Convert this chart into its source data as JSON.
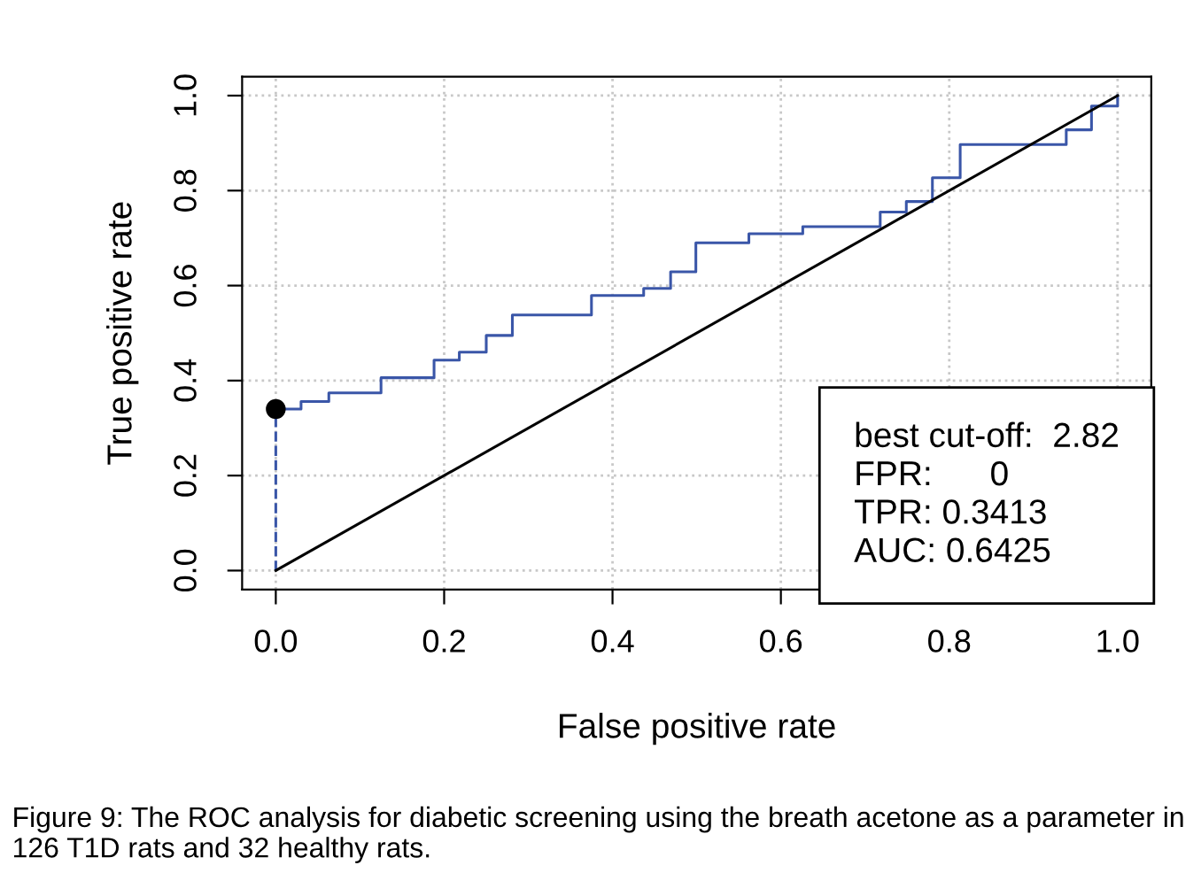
{
  "chart_data": {
    "type": "step",
    "xlabel": "False positive rate",
    "ylabel": "True positive rate",
    "xlim": [
      -0.04,
      1.04
    ],
    "ylim": [
      -0.04,
      1.04
    ],
    "xticks": [
      {
        "value": 0,
        "label": "0.0"
      },
      {
        "value": 0.2,
        "label": "0.2"
      },
      {
        "value": 0.4,
        "label": "0.4"
      },
      {
        "value": 0.6,
        "label": "0.6"
      },
      {
        "value": 0.8,
        "label": "0.8"
      },
      {
        "value": 1,
        "label": "1.0"
      }
    ],
    "yticks": [
      {
        "value": 0,
        "label": "0.0"
      },
      {
        "value": 0.2,
        "label": "0.2"
      },
      {
        "value": 0.4,
        "label": "0.4"
      },
      {
        "value": 0.6,
        "label": "0.6"
      },
      {
        "value": 0.8,
        "label": "0.8"
      },
      {
        "value": 1,
        "label": "1.0"
      }
    ],
    "grid": true,
    "legend": false,
    "series": [
      {
        "type": "step",
        "color": "#3a56a8",
        "x": [
          0,
          0.03,
          0.063,
          0.125,
          0.188,
          0.218,
          0.25,
          0.281,
          0.375,
          0.437,
          0.469,
          0.499,
          0.562,
          0.626,
          0.718,
          0.749,
          0.78,
          0.813,
          0.939,
          0.969,
          1.0
        ],
        "values": [
          0.34,
          0.356,
          0.374,
          0.406,
          0.443,
          0.46,
          0.495,
          0.538,
          0.579,
          0.594,
          0.629,
          0.69,
          0.709,
          0.724,
          0.755,
          0.777,
          0.827,
          0.897,
          0.928,
          0.978,
          1.0
        ]
      },
      {
        "type": "line",
        "color": "#3a56a8",
        "line_style": "dashed",
        "marker": "none",
        "x": [
          0,
          0
        ],
        "values": [
          0,
          0.34
        ]
      },
      {
        "type": "line",
        "color": "#000000",
        "line_style": "solid",
        "marker": "none",
        "x": [
          0,
          1
        ],
        "values": [
          0,
          1
        ]
      },
      {
        "type": "scatter",
        "color": "#000000",
        "marker": "circle",
        "x": [
          0
        ],
        "values": [
          0.34
        ]
      }
    ],
    "annotations": [
      "best cut-off:  2.82",
      "FPR:      0",
      "TPR: 0.3413",
      "AUC: 0.6425",
      "Figure 9: The ROC analysis for diabetic screening using the breath acetone as a parameter in 126 T1D rats and 32 healthy rats."
    ]
  }
}
